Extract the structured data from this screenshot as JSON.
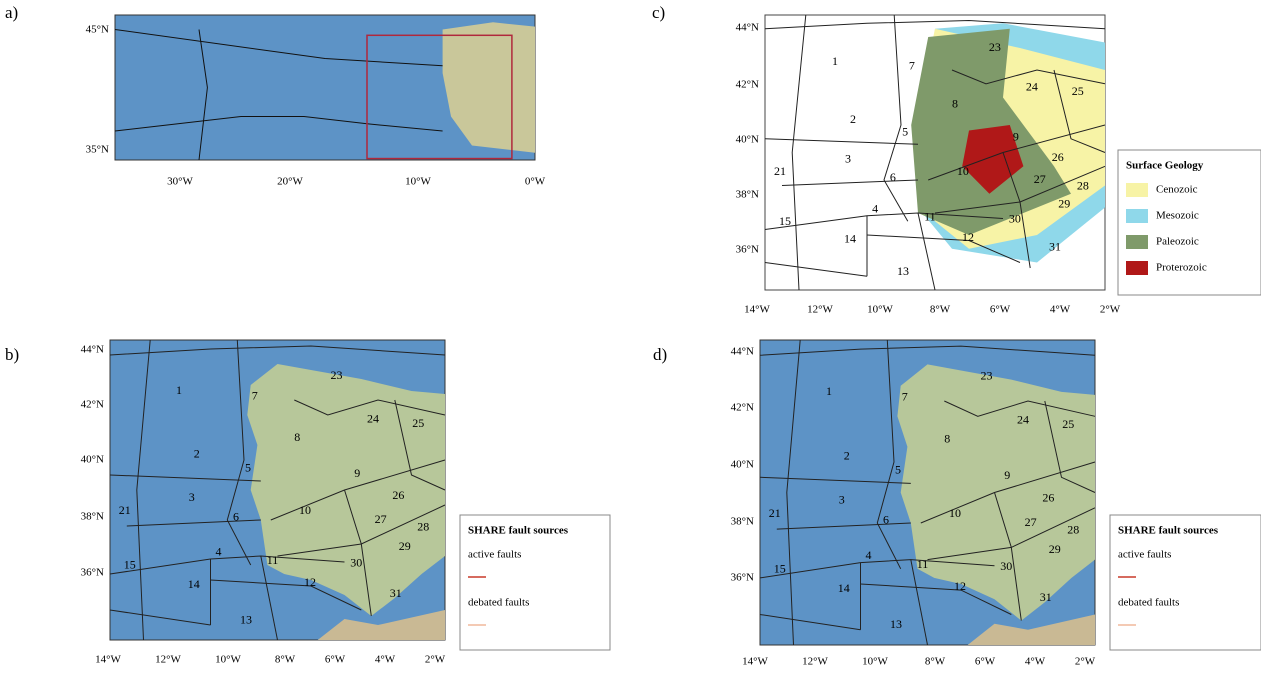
{
  "panels": [
    {
      "label": "a)",
      "lat_ticks": [
        "45°N",
        "35°N"
      ],
      "lon_ticks": [
        "30°W",
        "20°W",
        "10°W",
        "0°W"
      ]
    },
    {
      "label": "c)",
      "lat_ticks": [
        "44°N",
        "42°N",
        "40°N",
        "38°N",
        "36°N"
      ],
      "lon_ticks": [
        "14°W",
        "12°W",
        "10°W",
        "8°W",
        "6°W",
        "4°W",
        "2°W"
      ],
      "legend": {
        "title": "Surface Geology",
        "items": [
          {
            "label": "Cenozoic",
            "color": "#f7f3a6"
          },
          {
            "label": "Mesozoic",
            "color": "#8fd8ea"
          },
          {
            "label": "Paleozoic",
            "color": "#7f9a6a"
          },
          {
            "label": "Proterozoic",
            "color": "#b01818"
          }
        ]
      }
    },
    {
      "label": "b)",
      "lat_ticks": [
        "44°N",
        "42°N",
        "40°N",
        "38°N",
        "36°N"
      ],
      "lon_ticks": [
        "14°W",
        "12°W",
        "10°W",
        "8°W",
        "6°W",
        "4°W",
        "2°W"
      ],
      "legend": {
        "title": "SHARE fault sources",
        "items": [
          {
            "label": "active faults",
            "color": "#c83a2a"
          },
          {
            "label": "debated faults",
            "color": "#f0b89c"
          }
        ]
      }
    },
    {
      "label": "d)",
      "lat_ticks": [
        "44°N",
        "42°N",
        "40°N",
        "38°N",
        "36°N"
      ],
      "lon_ticks": [
        "14°W",
        "12°W",
        "10°W",
        "8°W",
        "6°W",
        "4°W",
        "2°W"
      ],
      "legend": {
        "title": "SHARE fault sources",
        "items": [
          {
            "label": "active faults",
            "color": "#c83a2a"
          },
          {
            "label": "debated faults",
            "color": "#f0b89c"
          }
        ]
      }
    }
  ],
  "zone_labels": [
    "1",
    "2",
    "3",
    "4",
    "5",
    "6",
    "7",
    "8",
    "9",
    "10",
    "11",
    "12",
    "13",
    "14",
    "15",
    "21",
    "23",
    "24",
    "25",
    "26",
    "27",
    "28",
    "29",
    "30",
    "31"
  ]
}
